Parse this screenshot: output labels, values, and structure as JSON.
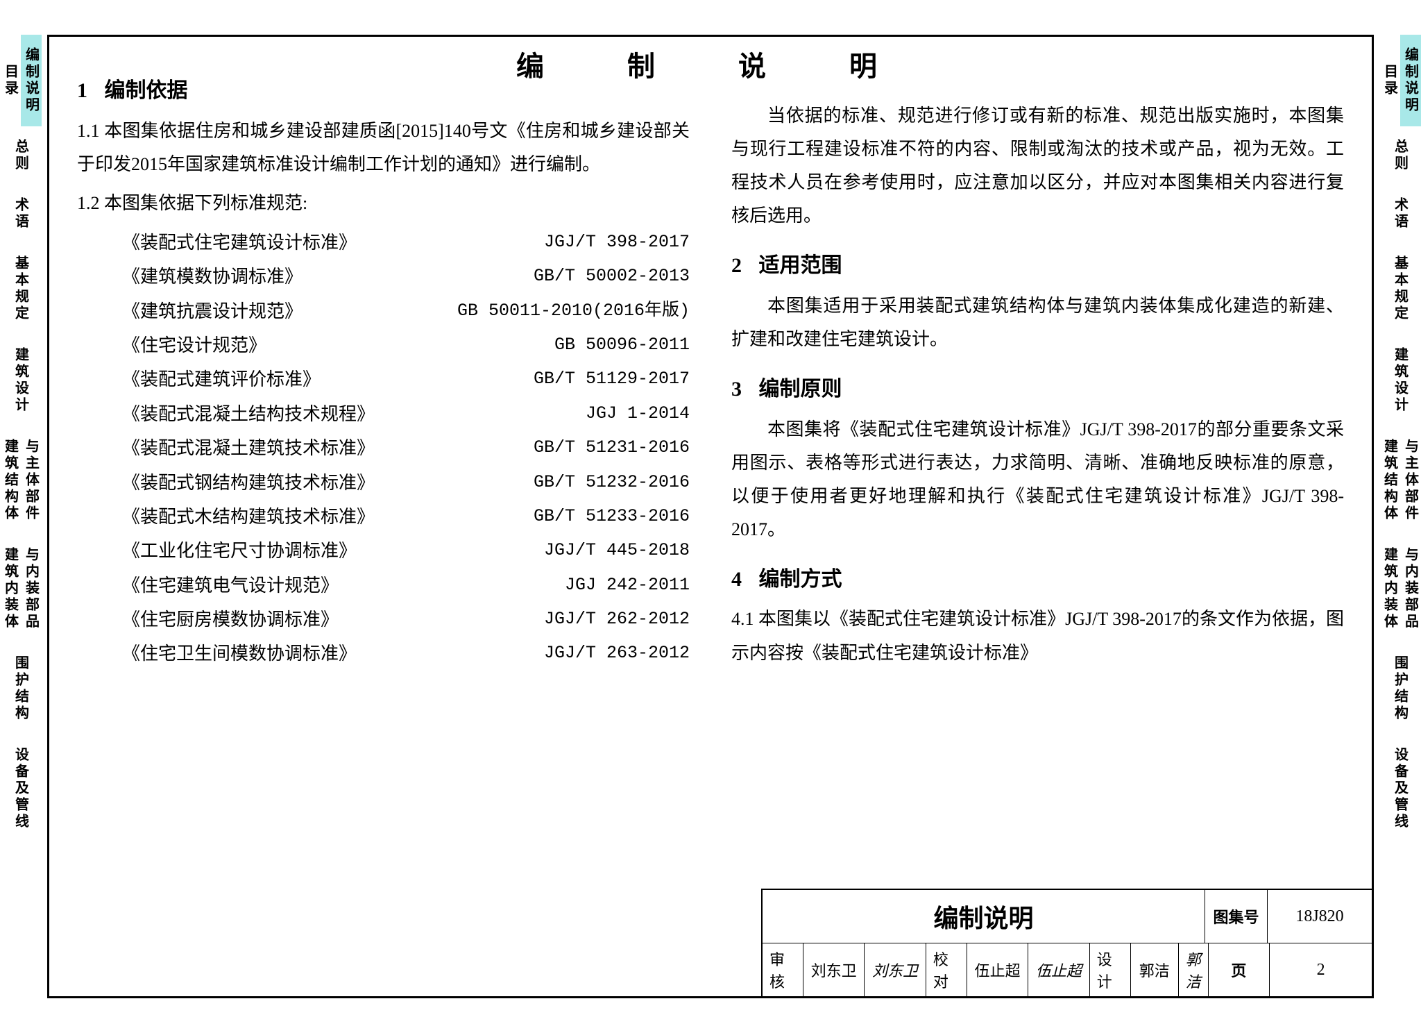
{
  "colors": {
    "tab_active_bg": "#a8e8e8",
    "text": "#000000",
    "border": "#000000"
  },
  "typography": {
    "body_fontsize": 26,
    "title_fontsize": 40,
    "section_fontsize": 30,
    "tab_fontsize": 20
  },
  "page_title": "编　制　说　明",
  "tabs": {
    "row0": [
      "目录",
      "编制说明"
    ],
    "singles": [
      "总则",
      "术语",
      "基本规定",
      "建筑设计"
    ],
    "row1": [
      "建筑结构体",
      "与主体部件"
    ],
    "row2": [
      "建筑内装体",
      "与内装部品"
    ],
    "singles2": [
      "围护结构",
      "设备及管线"
    ]
  },
  "section1": {
    "num": "1",
    "title": "编制依据",
    "p1": "1.1 本图集依据住房和城乡建设部建质函[2015]140号文《住房和城乡建设部关于印发2015年国家建筑标准设计编制工作计划的通知》进行编制。",
    "p2": "1.2 本图集依据下列标准规范:",
    "standards": [
      {
        "name": "《装配式住宅建筑设计标准》",
        "code": "JGJ/T 398-2017"
      },
      {
        "name": "《建筑模数协调标准》",
        "code": "GB/T 50002-2013"
      },
      {
        "name": "《建筑抗震设计规范》",
        "code": "GB 50011-2010(2016年版)"
      },
      {
        "name": "《住宅设计规范》",
        "code": "GB 50096-2011"
      },
      {
        "name": "《装配式建筑评价标准》",
        "code": "GB/T 51129-2017"
      },
      {
        "name": "《装配式混凝土结构技术规程》",
        "code": "JGJ 1-2014"
      },
      {
        "name": "《装配式混凝土建筑技术标准》",
        "code": "GB/T 51231-2016"
      },
      {
        "name": "《装配式钢结构建筑技术标准》",
        "code": "GB/T 51232-2016"
      },
      {
        "name": "《装配式木结构建筑技术标准》",
        "code": "GB/T 51233-2016"
      },
      {
        "name": "《工业化住宅尺寸协调标准》",
        "code": "JGJ/T 445-2018"
      },
      {
        "name": "《住宅建筑电气设计规范》",
        "code": "JGJ 242-2011"
      },
      {
        "name": "《住宅厨房模数协调标准》",
        "code": "JGJ/T 262-2012"
      },
      {
        "name": "《住宅卫生间模数协调标准》",
        "code": "JGJ/T 263-2012"
      }
    ]
  },
  "right_intro": "当依据的标准、规范进行修订或有新的标准、规范出版实施时，本图集与现行工程建设标准不符的内容、限制或淘汰的技术或产品，视为无效。工程技术人员在参考使用时，应注意加以区分，并应对本图集相关内容进行复核后选用。",
  "section2": {
    "num": "2",
    "title": "适用范围",
    "p1": "本图集适用于采用装配式建筑结构体与建筑内装体集成化建造的新建、扩建和改建住宅建筑设计。"
  },
  "section3": {
    "num": "3",
    "title": "编制原则",
    "p1": "本图集将《装配式住宅建筑设计标准》JGJ/T 398-2017的部分重要条文采用图示、表格等形式进行表达，力求简明、清晰、准确地反映标准的原意，以便于使用者更好地理解和执行《装配式住宅建筑设计标准》JGJ/T 398-2017。"
  },
  "section4": {
    "num": "4",
    "title": "编制方式",
    "p1": "4.1 本图集以《装配式住宅建筑设计标准》JGJ/T 398-2017的条文作为依据，图示内容按《装配式住宅建筑设计标准》"
  },
  "footer": {
    "title": "编制说明",
    "atlas_label": "图集号",
    "atlas_no": "18J820",
    "review_label": "审核",
    "reviewer": "刘东卫",
    "review_sig": "刘东卫",
    "check_label": "校对",
    "checker": "伍止超",
    "check_sig": "伍止超",
    "design_label": "设计",
    "designer": "郭洁",
    "design_sig": "郭洁",
    "page_label": "页",
    "page_no": "2"
  }
}
